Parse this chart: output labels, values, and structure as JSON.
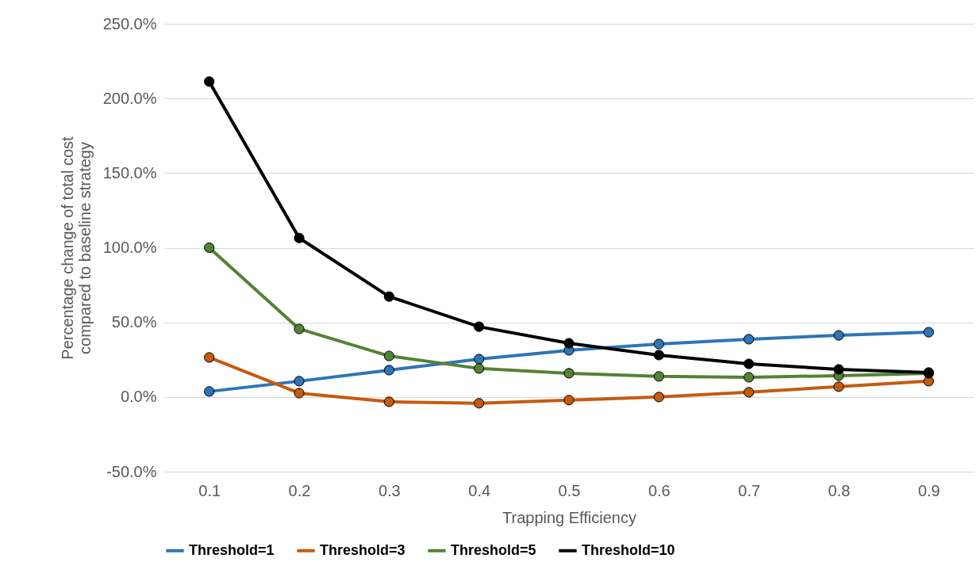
{
  "chart_data": {
    "type": "line",
    "xlabel": "Trapping Efficiency",
    "ylabel": "Percentage change of total cost\ncompared to baseline strategy",
    "categories": [
      "0.1",
      "0.2",
      "0.3",
      "0.4",
      "0.5",
      "0.6",
      "0.7",
      "0.8",
      "0.9"
    ],
    "series": [
      {
        "name": "Threshold=1",
        "color": "#2e75b6",
        "values": [
          3.7,
          10.6,
          18.0,
          25.4,
          31.3,
          35.5,
          38.7,
          41.3,
          43.4
        ]
      },
      {
        "name": "Threshold=3",
        "color": "#c55a11",
        "values": [
          26.5,
          2.6,
          -3.2,
          -4.2,
          -2.1,
          0,
          3.2,
          6.9,
          10.6
        ]
      },
      {
        "name": "Threshold=5",
        "color": "#548235",
        "values": [
          100,
          45.6,
          27.5,
          19.1,
          15.9,
          13.8,
          13.2,
          14.3,
          15.9
        ]
      },
      {
        "name": "Threshold=10",
        "color": "#000000",
        "values": [
          211.3,
          106.5,
          67.3,
          47.1,
          36.0,
          28.1,
          22.2,
          18.5,
          16.4
        ]
      }
    ],
    "ylim": [
      -50,
      250
    ],
    "yticks": [
      {
        "value": -50,
        "label": "-50.0%"
      },
      {
        "value": 0,
        "label": "0.0%"
      },
      {
        "value": 50,
        "label": "50.0%"
      },
      {
        "value": 100,
        "label": "100.0%"
      },
      {
        "value": 150,
        "label": "150.0%"
      },
      {
        "value": 200,
        "label": "200.0%"
      },
      {
        "value": 250,
        "label": "250.0%"
      }
    ],
    "grid": "y",
    "legend": "bottom",
    "marker": "circle",
    "line_style": "solid"
  }
}
